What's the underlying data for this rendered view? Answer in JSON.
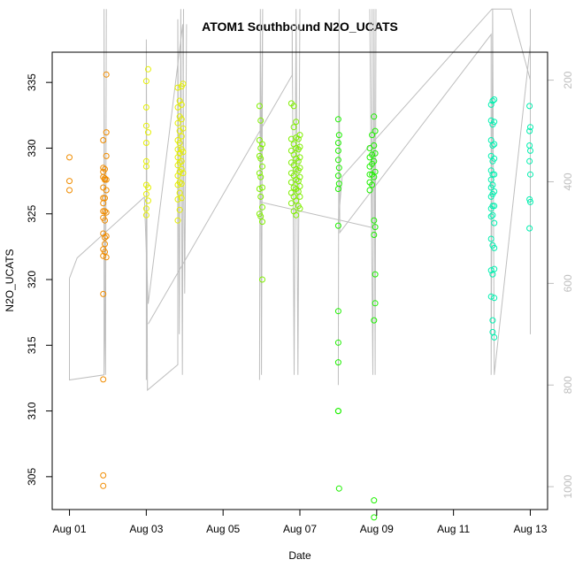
{
  "chart_data": {
    "type": "scatter",
    "title": "ATOM1 Southbound N2O_UCATS",
    "xlabel": "Date",
    "ylabel": "N2O_UCATS",
    "x_tick_labels": [
      "Aug 01",
      "Aug 03",
      "Aug 05",
      "Aug 07",
      "Aug 09",
      "Aug 11",
      "Aug 13"
    ],
    "x_tick_values": [
      0,
      2,
      4,
      6,
      8,
      10,
      12
    ],
    "xlim": [
      -0.45,
      12.45
    ],
    "y_ticks": [
      305,
      310,
      315,
      320,
      325,
      330,
      335
    ],
    "ylim": [
      302.5,
      337.3
    ],
    "y2_ticks": [
      200,
      400,
      600,
      800,
      1000
    ],
    "y2lim": [
      1045,
      145
    ],
    "y2_reversed": true,
    "grid": false,
    "point_style": "open-circle",
    "profile_line_color": "#bebebe",
    "series": [
      {
        "color": "#f08c00",
        "points": [
          [
            0.0,
            329.3
          ],
          [
            0.0,
            327.5
          ],
          [
            0.0,
            326.8
          ],
          [
            0.88,
            330.6
          ],
          [
            0.88,
            328.5
          ],
          [
            0.88,
            328.2
          ],
          [
            0.88,
            327.8
          ],
          [
            0.88,
            327.0
          ],
          [
            0.88,
            326.2
          ],
          [
            0.88,
            325.8
          ],
          [
            0.88,
            325.2
          ],
          [
            0.88,
            324.7
          ],
          [
            0.88,
            323.5
          ],
          [
            0.88,
            322.3
          ],
          [
            0.88,
            321.8
          ],
          [
            0.88,
            318.9
          ],
          [
            0.88,
            312.4
          ],
          [
            0.88,
            305.1
          ],
          [
            0.88,
            304.3
          ],
          [
            0.92,
            328.4
          ],
          [
            0.92,
            327.7
          ],
          [
            0.92,
            327.6
          ],
          [
            0.92,
            326.2
          ],
          [
            0.92,
            325.2
          ],
          [
            0.92,
            324.5
          ],
          [
            0.92,
            323.2
          ],
          [
            0.92,
            322.7
          ],
          [
            0.92,
            322.1
          ],
          [
            0.96,
            335.6
          ],
          [
            0.96,
            331.2
          ],
          [
            0.96,
            329.4
          ],
          [
            0.96,
            327.6
          ],
          [
            0.96,
            326.8
          ],
          [
            0.96,
            325.1
          ],
          [
            0.96,
            323.3
          ],
          [
            0.96,
            321.7
          ]
        ]
      },
      {
        "color": "#e6f000",
        "points": [
          [
            2.0,
            335.1
          ],
          [
            2.0,
            333.1
          ],
          [
            2.0,
            331.7
          ],
          [
            2.0,
            330.4
          ],
          [
            2.0,
            329.0
          ],
          [
            2.0,
            328.6
          ],
          [
            2.0,
            327.2
          ],
          [
            2.0,
            326.5
          ],
          [
            2.0,
            325.4
          ],
          [
            2.0,
            324.9
          ],
          [
            2.05,
            336.0
          ],
          [
            2.05,
            331.2
          ],
          [
            2.05,
            327.0
          ],
          [
            2.05,
            326.0
          ],
          [
            2.82,
            334.6
          ],
          [
            2.82,
            333.1
          ],
          [
            2.82,
            331.9
          ],
          [
            2.82,
            330.6
          ],
          [
            2.82,
            329.9
          ],
          [
            2.82,
            329.3
          ],
          [
            2.82,
            328.7
          ],
          [
            2.82,
            327.9
          ],
          [
            2.82,
            327.2
          ],
          [
            2.82,
            326.1
          ],
          [
            2.82,
            324.5
          ],
          [
            2.87,
            333.6
          ],
          [
            2.87,
            332.4
          ],
          [
            2.87,
            331.3
          ],
          [
            2.87,
            330.4
          ],
          [
            2.87,
            329.6
          ],
          [
            2.87,
            328.9
          ],
          [
            2.87,
            328.2
          ],
          [
            2.87,
            327.4
          ],
          [
            2.87,
            326.6
          ],
          [
            2.87,
            325.3
          ],
          [
            2.92,
            334.7
          ],
          [
            2.92,
            333.3
          ],
          [
            2.92,
            332.2
          ],
          [
            2.92,
            330.9
          ],
          [
            2.92,
            329.9
          ],
          [
            2.92,
            329.0
          ],
          [
            2.92,
            328.4
          ],
          [
            2.92,
            327.3
          ],
          [
            2.92,
            326.2
          ],
          [
            2.96,
            334.9
          ],
          [
            2.96,
            331.5
          ],
          [
            2.96,
            329.7
          ],
          [
            2.96,
            328.1
          ]
        ]
      },
      {
        "color": "#80f000",
        "points": [
          [
            4.95,
            333.2
          ],
          [
            4.95,
            330.6
          ],
          [
            4.95,
            329.4
          ],
          [
            4.95,
            328.1
          ],
          [
            4.95,
            326.9
          ],
          [
            4.95,
            325.0
          ],
          [
            4.98,
            332.1
          ],
          [
            4.98,
            330.0
          ],
          [
            4.98,
            329.2
          ],
          [
            4.98,
            327.8
          ],
          [
            4.98,
            326.3
          ],
          [
            4.98,
            324.8
          ],
          [
            5.02,
            330.3
          ],
          [
            5.02,
            328.6
          ],
          [
            5.02,
            327.0
          ],
          [
            5.02,
            325.5
          ],
          [
            5.02,
            324.4
          ],
          [
            5.02,
            320.0
          ],
          [
            5.78,
            333.4
          ],
          [
            5.78,
            330.7
          ],
          [
            5.78,
            329.8
          ],
          [
            5.78,
            328.9
          ],
          [
            5.78,
            328.1
          ],
          [
            5.78,
            327.4
          ],
          [
            5.78,
            326.6
          ],
          [
            5.78,
            325.8
          ],
          [
            5.84,
            333.2
          ],
          [
            5.84,
            331.6
          ],
          [
            5.84,
            330.3
          ],
          [
            5.84,
            329.5
          ],
          [
            5.84,
            328.7
          ],
          [
            5.84,
            327.9
          ],
          [
            5.84,
            327.0
          ],
          [
            5.84,
            326.3
          ],
          [
            5.84,
            325.2
          ],
          [
            5.9,
            332.0
          ],
          [
            5.9,
            330.8
          ],
          [
            5.9,
            330.0
          ],
          [
            5.9,
            329.2
          ],
          [
            5.9,
            328.4
          ],
          [
            5.9,
            327.6
          ],
          [
            5.9,
            326.9
          ],
          [
            5.9,
            326.0
          ],
          [
            5.9,
            324.9
          ],
          [
            5.96,
            330.7
          ],
          [
            5.96,
            329.9
          ],
          [
            5.96,
            329.0
          ],
          [
            5.96,
            328.3
          ],
          [
            5.96,
            327.5
          ],
          [
            5.96,
            326.7
          ],
          [
            5.96,
            325.6
          ],
          [
            6.0,
            331.0
          ],
          [
            6.0,
            330.1
          ],
          [
            6.0,
            329.3
          ],
          [
            6.0,
            328.5
          ],
          [
            6.0,
            327.8
          ],
          [
            6.0,
            327.1
          ],
          [
            6.0,
            326.3
          ],
          [
            6.0,
            325.4
          ]
        ]
      },
      {
        "color": "#1ef000",
        "points": [
          [
            7.0,
            332.2
          ],
          [
            7.0,
            330.4
          ],
          [
            7.0,
            329.8
          ],
          [
            7.0,
            329.1
          ],
          [
            7.0,
            327.9
          ],
          [
            7.0,
            326.9
          ],
          [
            7.0,
            324.1
          ],
          [
            7.0,
            317.6
          ],
          [
            7.0,
            315.2
          ],
          [
            7.0,
            313.7
          ],
          [
            7.0,
            310.0
          ],
          [
            7.0,
            310.0
          ],
          [
            7.02,
            331.0
          ],
          [
            7.02,
            328.5
          ],
          [
            7.02,
            327.3
          ],
          [
            7.02,
            304.1
          ],
          [
            7.82,
            330.0
          ],
          [
            7.82,
            329.3
          ],
          [
            7.82,
            328.6
          ],
          [
            7.82,
            328.0
          ],
          [
            7.82,
            327.4
          ],
          [
            7.82,
            326.8
          ],
          [
            7.88,
            331.0
          ],
          [
            7.88,
            329.5
          ],
          [
            7.88,
            328.8
          ],
          [
            7.88,
            328.0
          ],
          [
            7.88,
            327.2
          ],
          [
            7.93,
            332.4
          ],
          [
            7.93,
            330.2
          ],
          [
            7.93,
            329.0
          ],
          [
            7.93,
            327.8
          ],
          [
            7.93,
            324.5
          ],
          [
            7.93,
            323.4
          ],
          [
            7.93,
            316.9
          ],
          [
            7.93,
            303.2
          ],
          [
            7.93,
            301.9
          ],
          [
            7.96,
            331.3
          ],
          [
            7.96,
            329.6
          ],
          [
            7.96,
            328.2
          ],
          [
            7.96,
            324.0
          ],
          [
            7.96,
            320.4
          ],
          [
            7.96,
            318.2
          ]
        ]
      },
      {
        "color": "#00f0b0",
        "points": [
          [
            10.98,
            333.3
          ],
          [
            10.98,
            332.1
          ],
          [
            10.98,
            330.6
          ],
          [
            10.98,
            329.4
          ],
          [
            10.98,
            328.3
          ],
          [
            10.98,
            327.6
          ],
          [
            10.98,
            327.0
          ],
          [
            10.98,
            326.3
          ],
          [
            10.98,
            325.4
          ],
          [
            10.98,
            324.8
          ],
          [
            10.98,
            323.1
          ],
          [
            10.98,
            320.7
          ],
          [
            10.98,
            318.7
          ],
          [
            11.02,
            333.6
          ],
          [
            11.02,
            331.8
          ],
          [
            11.02,
            330.2
          ],
          [
            11.02,
            329.0
          ],
          [
            11.02,
            328.0
          ],
          [
            11.02,
            327.2
          ],
          [
            11.02,
            326.5
          ],
          [
            11.02,
            325.6
          ],
          [
            11.02,
            324.9
          ],
          [
            11.02,
            322.6
          ],
          [
            11.02,
            320.4
          ],
          [
            11.02,
            316.9
          ],
          [
            11.02,
            316.0
          ],
          [
            11.06,
            333.7
          ],
          [
            11.06,
            332.0
          ],
          [
            11.06,
            330.3
          ],
          [
            11.06,
            329.2
          ],
          [
            11.06,
            328.0
          ],
          [
            11.06,
            326.7
          ],
          [
            11.06,
            325.6
          ],
          [
            11.06,
            324.3
          ],
          [
            11.06,
            322.4
          ],
          [
            11.06,
            320.8
          ],
          [
            11.06,
            318.6
          ],
          [
            11.06,
            315.6
          ],
          [
            11.98,
            333.2
          ],
          [
            11.98,
            331.3
          ],
          [
            11.98,
            330.2
          ],
          [
            11.98,
            329.0
          ],
          [
            11.98,
            326.1
          ],
          [
            11.98,
            323.9
          ],
          [
            12.0,
            331.6
          ],
          [
            12.0,
            329.8
          ],
          [
            12.0,
            328.0
          ],
          [
            12.0,
            325.9
          ]
        ]
      }
    ],
    "profile_paths": [
      [
        [
          0.0,
          590
        ],
        [
          0.0,
          790
        ],
        [
          0.9,
          780
        ],
        [
          0.9,
          60
        ],
        [
          0.92,
          700
        ],
        [
          0.94,
          780
        ],
        [
          0.96,
          60
        ]
      ],
      [
        [
          0.0,
          590
        ],
        [
          0.2,
          550
        ],
        [
          1.95,
          430
        ],
        [
          2.05,
          640
        ],
        [
          2.95,
          90
        ],
        [
          3.0,
          620
        ],
        [
          3.05,
          90
        ]
      ],
      [
        [
          2.0,
          790
        ],
        [
          2.0,
          120
        ],
        [
          2.03,
          810
        ],
        [
          2.82,
          760
        ],
        [
          2.82,
          80
        ],
        [
          2.86,
          700
        ],
        [
          2.9,
          60
        ],
        [
          2.94,
          780
        ],
        [
          2.97,
          60
        ]
      ],
      [
        [
          2.05,
          680
        ],
        [
          5.8,
          190
        ],
        [
          5.8,
          90
        ],
        [
          5.85,
          780
        ],
        [
          5.9,
          60
        ],
        [
          5.95,
          780
        ],
        [
          6.0,
          60
        ]
      ],
      [
        [
          4.95,
          790
        ],
        [
          4.97,
          60
        ],
        [
          5.0,
          780
        ],
        [
          5.03,
          60
        ],
        [
          4.98,
          440
        ],
        [
          7.88,
          490
        ],
        [
          7.88,
          60
        ]
      ],
      [
        [
          7.0,
          800
        ],
        [
          7.02,
          60
        ],
        [
          7.04,
          500
        ],
        [
          10.98,
          110
        ],
        [
          10.98,
          780
        ],
        [
          11.02,
          60
        ],
        [
          11.06,
          780
        ],
        [
          12.0,
          130
        ],
        [
          12.0,
          700
        ],
        [
          12.0,
          60
        ]
      ],
      [
        [
          7.0,
          480
        ],
        [
          7.1,
          390
        ],
        [
          11.0,
          60
        ],
        [
          11.5,
          60
        ],
        [
          12.0,
          200
        ],
        [
          12.0,
          700
        ]
      ],
      [
        [
          7.82,
          60
        ],
        [
          7.9,
          780
        ],
        [
          7.93,
          60
        ],
        [
          7.96,
          780
        ],
        [
          7.98,
          60
        ]
      ]
    ]
  }
}
